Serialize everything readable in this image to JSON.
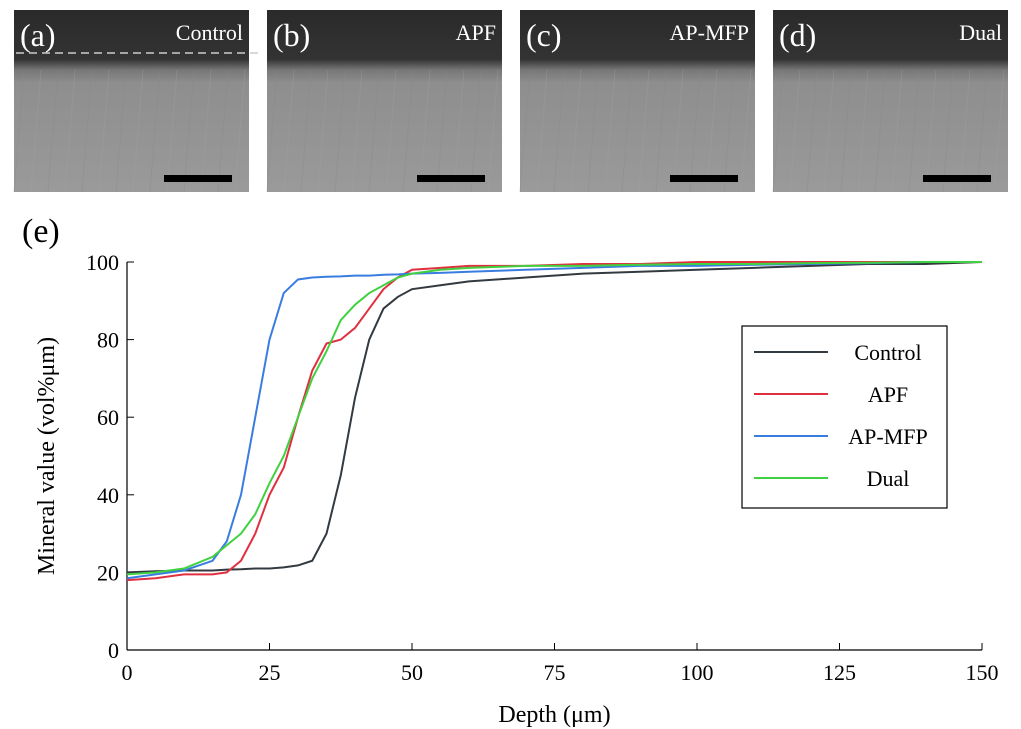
{
  "panels": [
    {
      "letter": "(a)",
      "label": "Control"
    },
    {
      "letter": "(b)",
      "label": "APF"
    },
    {
      "letter": "(c)",
      "label": "AP-MFP"
    },
    {
      "letter": "(d)",
      "label": "Dual"
    }
  ],
  "chart_data": {
    "type": "line",
    "panel_letter": "(e)",
    "x_label": "Depth (μm)",
    "y_label": "Mineral value (vol%μm)",
    "x": [
      0,
      5,
      10,
      15,
      17.5,
      20,
      22.5,
      25,
      27.5,
      30,
      32.5,
      35,
      37.5,
      40,
      42.5,
      45,
      47.5,
      50,
      55,
      60,
      70,
      80,
      90,
      100,
      110,
      120,
      130,
      140,
      150
    ],
    "series": [
      {
        "name": "Control",
        "color": "#333a40",
        "values": [
          20,
          20.3,
          20.5,
          20.5,
          20.7,
          20.8,
          21,
          21,
          21.3,
          21.8,
          23,
          30,
          45,
          65,
          80,
          88,
          91,
          93,
          94,
          95,
          96,
          97,
          97.5,
          98,
          98.5,
          99,
          99.5,
          99.5,
          100
        ]
      },
      {
        "name": "APF",
        "color": "#e03040",
        "values": [
          18,
          18.5,
          19.5,
          19.5,
          20,
          23,
          30,
          40,
          47,
          60,
          72,
          79,
          80,
          83,
          88,
          93,
          96,
          98,
          98.5,
          99,
          99,
          99.5,
          99.5,
          100,
          100,
          100,
          100,
          100,
          100
        ]
      },
      {
        "name": "AP-MFP",
        "color": "#3a7de0",
        "values": [
          18.5,
          19.5,
          20.5,
          23,
          28,
          40,
          60,
          80,
          92,
          95.5,
          96,
          96.2,
          96.3,
          96.5,
          96.5,
          96.7,
          96.8,
          97,
          97.2,
          97.5,
          98,
          98.5,
          99,
          99,
          99.3,
          99.5,
          99.7,
          100,
          100
        ]
      },
      {
        "name": "Dual",
        "color": "#40d040",
        "values": [
          19.5,
          20,
          21,
          24,
          27,
          30,
          35,
          43,
          50,
          60,
          70,
          77,
          85,
          89,
          92,
          94,
          96,
          97,
          98,
          98.5,
          99,
          99,
          99.3,
          99.5,
          99.5,
          99.7,
          99.8,
          100,
          100
        ]
      }
    ],
    "xlim": [
      0,
      150
    ],
    "xticks": [
      0,
      25,
      50,
      75,
      100,
      125,
      150
    ],
    "ylim": [
      0,
      100
    ],
    "yticks": [
      0,
      20,
      40,
      60,
      80,
      100
    ],
    "legend": "right"
  }
}
